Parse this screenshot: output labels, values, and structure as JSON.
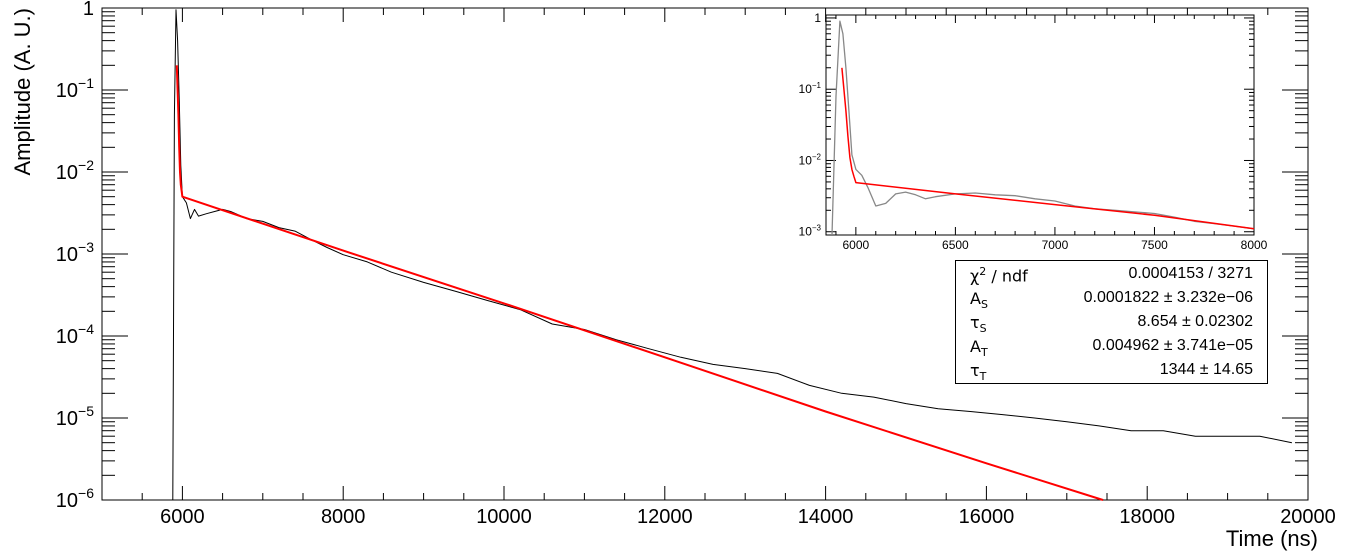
{
  "chart_data": [
    {
      "type": "line",
      "title": "",
      "xlabel": "Time (ns)",
      "ylabel": "Amplitude (A. U.)",
      "xlim": [
        5000,
        20000
      ],
      "ylim": [
        1e-06,
        1
      ],
      "y_scale": "log",
      "grid": false,
      "x_ticks": [
        "6000",
        "8000",
        "10000",
        "12000",
        "14000",
        "16000",
        "18000",
        "20000"
      ],
      "x_tick_values": [
        6000,
        8000,
        10000,
        12000,
        14000,
        16000,
        18000,
        20000
      ],
      "y_ticks": [
        {
          "value": 1,
          "base": "1",
          "exp": ""
        },
        {
          "value": 0.1,
          "base": "10",
          "exp": "−1"
        },
        {
          "value": 0.01,
          "base": "10",
          "exp": "−2"
        },
        {
          "value": 0.001,
          "base": "10",
          "exp": "−3"
        },
        {
          "value": 0.0001,
          "base": "10",
          "exp": "−4"
        },
        {
          "value": 1e-05,
          "base": "10",
          "exp": "−5"
        },
        {
          "value": 1e-06,
          "base": "10",
          "exp": "−6"
        }
      ],
      "series": [
        {
          "role": "data",
          "color": "#000000",
          "x": [
            5880,
            5900,
            5920,
            5940,
            5960,
            5980,
            6000,
            6050,
            6100,
            6150,
            6200,
            6300,
            6400,
            6500,
            6600,
            6700,
            6800,
            7000,
            7200,
            7400,
            7600,
            7800,
            8000,
            8300,
            8600,
            9000,
            9400,
            9800,
            10200,
            10600,
            11000,
            11400,
            11800,
            12200,
            12600,
            13000,
            13400,
            13800,
            14200,
            14600,
            15000,
            15400,
            15800,
            16200,
            16600,
            17000,
            17400,
            17800,
            18200,
            18600,
            19000,
            19400,
            19800
          ],
          "y": [
            1e-06,
            0.05,
            0.95,
            0.4,
            0.08,
            0.012,
            0.005,
            0.0042,
            0.0027,
            0.0035,
            0.0029,
            0.0031,
            0.0033,
            0.0035,
            0.0033,
            0.003,
            0.0027,
            0.0025,
            0.0021,
            0.0019,
            0.0015,
            0.0012,
            0.00098,
            0.0008,
            0.0006,
            0.00045,
            0.00035,
            0.00027,
            0.00021,
            0.00014,
            0.00012,
            9e-05,
            7e-05,
            5.5e-05,
            4.5e-05,
            4e-05,
            3.5e-05,
            2.5e-05,
            2e-05,
            1.8e-05,
            1.5e-05,
            1.3e-05,
            1.2e-05,
            1.1e-05,
            1e-05,
            9e-06,
            8e-06,
            7e-06,
            7e-06,
            6e-06,
            6e-06,
            6e-06,
            5e-06
          ]
        },
        {
          "role": "fit",
          "color": "#ff0000",
          "x": [
            5930,
            5940,
            5950,
            5960,
            5970,
            5980,
            6000,
            8000,
            10000,
            12000,
            14000,
            16000,
            17450
          ],
          "y": [
            0.2,
            0.1,
            0.05,
            0.02,
            0.01,
            0.007,
            0.005,
            0.0011,
            0.00025,
            5.5e-05,
            1.2e-05,
            2.8e-06,
            1e-06
          ]
        }
      ]
    },
    {
      "type": "line",
      "title": "",
      "xlabel": "",
      "ylabel": "",
      "xlim": [
        5850,
        8000
      ],
      "ylim": [
        0.0009,
        1.1
      ],
      "y_scale": "log",
      "grid": false,
      "x_ticks": [
        "6000",
        "6500",
        "7000",
        "7500",
        "8000"
      ],
      "x_tick_values": [
        6000,
        6500,
        7000,
        7500,
        8000
      ],
      "y_ticks": [
        {
          "value": 1,
          "base": "1",
          "exp": ""
        },
        {
          "value": 0.1,
          "base": "10",
          "exp": "−1"
        },
        {
          "value": 0.01,
          "base": "10",
          "exp": "−2"
        },
        {
          "value": 0.001,
          "base": "10",
          "exp": "−3"
        }
      ],
      "series": [
        {
          "role": "data",
          "color": "#888888",
          "x": [
            5880,
            5900,
            5920,
            5935,
            5950,
            5965,
            5980,
            6000,
            6030,
            6060,
            6100,
            6150,
            6200,
            6250,
            6300,
            6350,
            6400,
            6500,
            6600,
            6700,
            6800,
            6900,
            7000,
            7100,
            7200,
            7300,
            7400,
            7500,
            7600,
            7700,
            7800,
            7900,
            8000
          ],
          "y": [
            0.0009,
            0.08,
            0.9,
            0.6,
            0.2,
            0.05,
            0.012,
            0.0075,
            0.0062,
            0.0042,
            0.0023,
            0.0025,
            0.0034,
            0.0036,
            0.0033,
            0.0029,
            0.0031,
            0.0034,
            0.0035,
            0.0033,
            0.0032,
            0.0029,
            0.0027,
            0.0023,
            0.0021,
            0.002,
            0.0019,
            0.0018,
            0.0016,
            0.0014,
            0.0013,
            0.0012,
            0.0011
          ]
        },
        {
          "role": "fit",
          "color": "#ff0000",
          "x": [
            5930,
            5940,
            5950,
            5960,
            5970,
            5980,
            5990,
            6000,
            6500,
            7000,
            7500,
            8000
          ],
          "y": [
            0.2,
            0.1,
            0.05,
            0.022,
            0.011,
            0.0075,
            0.006,
            0.0049,
            0.0034,
            0.0024,
            0.0017,
            0.0011
          ]
        }
      ]
    }
  ],
  "stats": {
    "rows": [
      {
        "name": "χ",
        "sup": "2",
        "name_suffix": " / ndf",
        "sub": "",
        "value": "0.0004153 / 3271"
      },
      {
        "name": "A",
        "sup": "",
        "name_suffix": "",
        "sub": "S",
        "value": "0.0001822 ± 3.232e−06"
      },
      {
        "name": "τ",
        "sup": "",
        "name_suffix": "",
        "sub": "S",
        "value": "8.654 ± 0.02302"
      },
      {
        "name": "A",
        "sup": "",
        "name_suffix": "",
        "sub": "T",
        "value": "0.004962 ± 3.741e−05"
      },
      {
        "name": "τ",
        "sup": "",
        "name_suffix": "",
        "sub": "T",
        "value": "1344 ± 14.65"
      }
    ]
  }
}
